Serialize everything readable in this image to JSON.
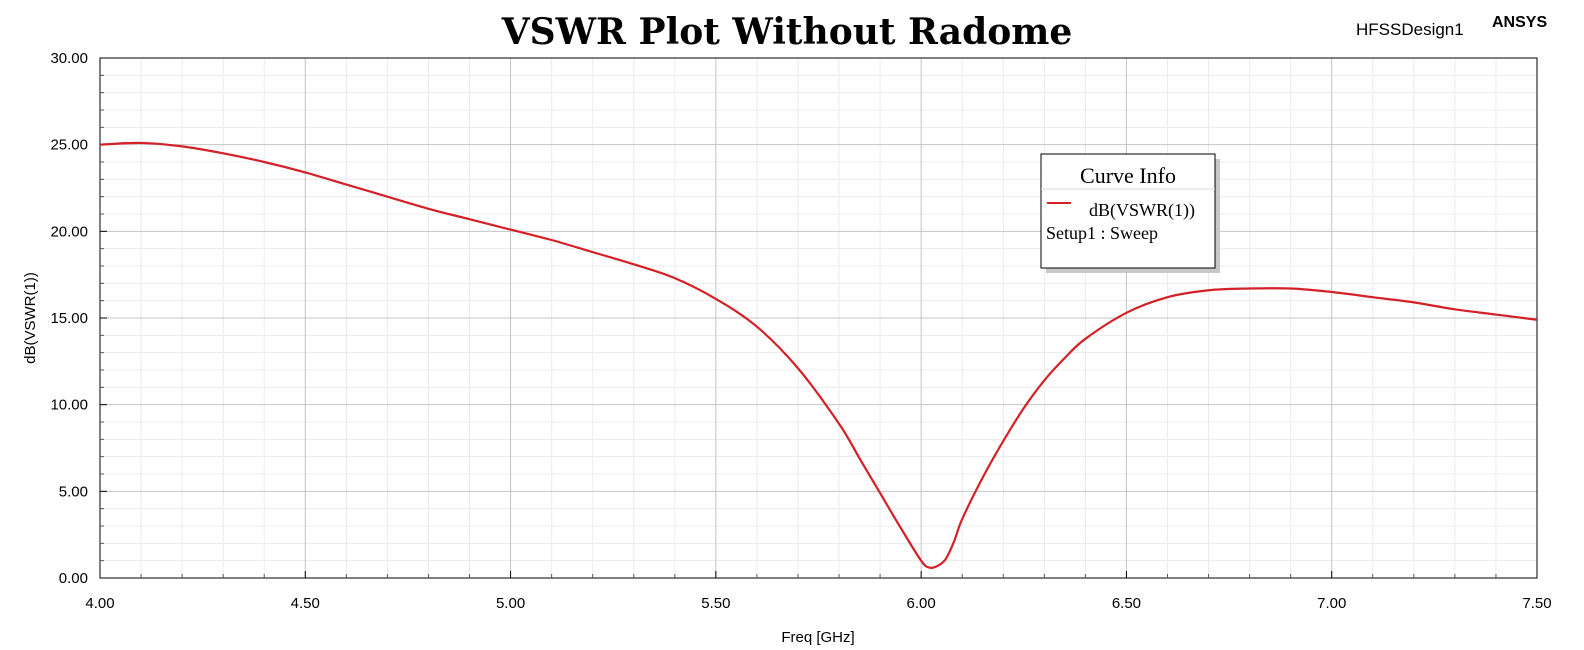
{
  "header": {
    "title": "VSWR Plot Without Radome",
    "design_name": "HFSSDesign1",
    "brand": "ANSYS"
  },
  "chart_data": {
    "type": "line",
    "title": "VSWR Plot Without Radome",
    "xlabel": "Freq [GHz]",
    "ylabel": "dB(VSWR(1))",
    "xlim": [
      4.0,
      7.5
    ],
    "ylim": [
      0.0,
      30.0
    ],
    "x_ticks": [
      "4.00",
      "4.50",
      "5.00",
      "5.50",
      "6.00",
      "6.50",
      "7.00",
      "7.50"
    ],
    "y_ticks": [
      "0.00",
      "5.00",
      "10.00",
      "15.00",
      "20.00",
      "25.00",
      "30.00"
    ],
    "grid": true,
    "legend": {
      "title": "Curve Info",
      "placement": "top-right",
      "entries": [
        {
          "label": "dB(VSWR(1))",
          "sublabel": "Setup1 : Sweep",
          "color": "#d42127"
        }
      ]
    },
    "series": [
      {
        "name": "dB(VSWR(1))",
        "color": "#d42127",
        "x": [
          4.0,
          4.1,
          4.2,
          4.3,
          4.4,
          4.5,
          4.6,
          4.7,
          4.8,
          4.9,
          5.0,
          5.1,
          5.2,
          5.3,
          5.4,
          5.5,
          5.6,
          5.7,
          5.8,
          5.85,
          5.9,
          5.95,
          6.0,
          6.02,
          6.04,
          6.06,
          6.08,
          6.1,
          6.15,
          6.2,
          6.25,
          6.3,
          6.35,
          6.4,
          6.5,
          6.6,
          6.7,
          6.8,
          6.9,
          7.0,
          7.1,
          7.2,
          7.3,
          7.4,
          7.5
        ],
        "y": [
          25.0,
          25.1,
          24.9,
          24.5,
          24.0,
          23.4,
          22.7,
          22.0,
          21.3,
          20.7,
          20.1,
          19.5,
          18.8,
          18.1,
          17.3,
          16.1,
          14.5,
          12.1,
          8.9,
          6.9,
          4.9,
          2.9,
          1.0,
          0.6,
          0.7,
          1.1,
          2.1,
          3.4,
          5.8,
          7.9,
          9.8,
          11.4,
          12.7,
          13.8,
          15.3,
          16.2,
          16.6,
          16.7,
          16.7,
          16.5,
          16.2,
          15.9,
          15.5,
          15.2,
          14.9
        ]
      }
    ]
  }
}
